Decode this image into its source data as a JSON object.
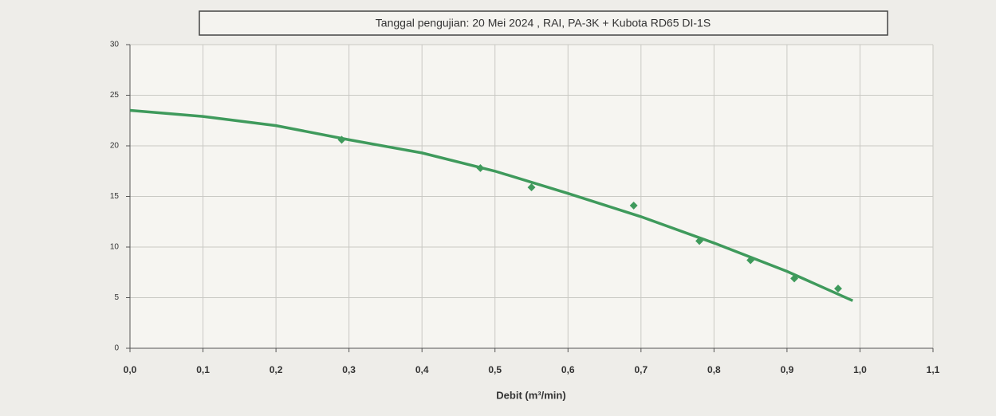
{
  "chart_data": {
    "type": "scatter",
    "title": "Tanggal pengujian: 20 Mei 2024 , RAI, PA-3K + Kubota  RD65 DI-1S",
    "x_label": "Debit (m³/min)",
    "xlim": [
      0,
      1.1
    ],
    "xticks": [
      {
        "value": 0,
        "label": "0,0"
      },
      {
        "value": 0.1,
        "label": "0,1"
      },
      {
        "value": 0.2,
        "label": "0,2"
      },
      {
        "value": 0.3,
        "label": "0,3"
      },
      {
        "value": 0.4,
        "label": "0,4"
      },
      {
        "value": 0.5,
        "label": "0,5"
      },
      {
        "value": 0.6,
        "label": "0,6"
      },
      {
        "value": 0.7,
        "label": "0,7"
      },
      {
        "value": 0.8,
        "label": "0,8"
      },
      {
        "value": 0.9,
        "label": "0,9"
      },
      {
        "value": 1.0,
        "label": "1,0"
      },
      {
        "value": 1.1,
        "label": "1,1"
      }
    ],
    "ylim": [
      0,
      30
    ],
    "yticks": [
      0,
      5,
      10,
      15,
      20,
      25,
      30
    ],
    "grid": true,
    "series": [
      {
        "style": "points",
        "color": "#3f9a5c",
        "x": [
          0.29,
          0.48,
          0.55,
          0.69,
          0.78,
          0.85,
          0.91,
          0.97
        ],
        "values": [
          20.6,
          17.8,
          15.9,
          14.1,
          10.6,
          8.7,
          6.9,
          5.9
        ]
      },
      {
        "style": "line",
        "color": "#3f9a5c",
        "x": [
          0,
          0.1,
          0.2,
          0.3,
          0.4,
          0.5,
          0.6,
          0.7,
          0.8,
          0.9,
          0.99
        ],
        "values": [
          23.5,
          22.9,
          22.0,
          20.6,
          19.3,
          17.5,
          15.3,
          13.0,
          10.4,
          7.6,
          4.7
        ]
      }
    ]
  }
}
